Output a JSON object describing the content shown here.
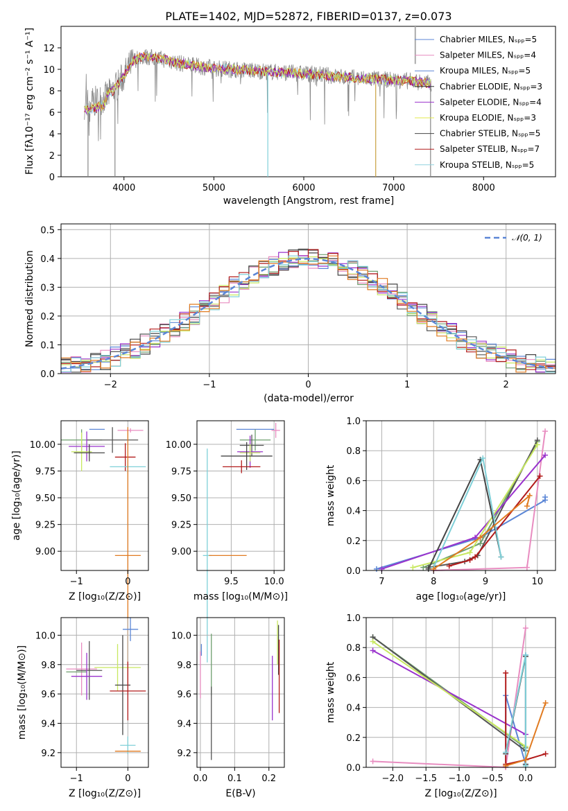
{
  "colors": [
    "#5b86d6",
    "#e88cc0",
    "#7fb87f",
    "#4f6f4f",
    "#8d36c2",
    "#e3e84a",
    "#333333",
    "#b22222",
    "#8fd2df"
  ],
  "model_colors": [
    "#5b86d6",
    "#e88cc0",
    "#6e9e6e",
    "#555555",
    "#9932cc",
    "#c8e860",
    "#444444",
    "#b21a1a",
    "#7fd0d8",
    "#e07a20"
  ],
  "chart_data": [
    {
      "id": "spectrum",
      "type": "line",
      "title": "PLATE=1402, MJD=52872, FIBERID=0137, z=0.073",
      "xlabel": "wavelength [Angstrom, rest frame]",
      "ylabel": "Flux [fλ10⁻¹⁷ erg cm⁻² s⁻¹ A⁻¹]",
      "xlim": [
        3300,
        8800
      ],
      "ylim": [
        0,
        14
      ],
      "xticks": [
        "4000",
        "5000",
        "6000",
        "7000",
        "8000"
      ],
      "yticks": [
        "0",
        "2",
        "4",
        "6",
        "8",
        "10",
        "12"
      ],
      "legend_position": "upper-right",
      "legend": [
        "Chabrier MILES, Nₛₚₚ=5",
        "Salpeter MILES, Nₛₚₚ=4",
        "Kroupa MILES, Nₛₚₚ=5",
        "Chabrier ELODIE, Nₛₚₚ=3",
        "Salpeter ELODIE, Nₛₚₚ=4",
        "Kroupa ELODIE, Nₛₚₚ=3",
        "Chabrier STELIB, Nₛₚₚ=5",
        "Salpeter STELIB, Nₛₚₚ=7",
        "Kroupa STELIB, Nₛₚₚ=5"
      ],
      "envelope": [
        [
          3560,
          6.8
        ],
        [
          3700,
          7.0
        ],
        [
          3800,
          7.4
        ],
        [
          3900,
          8.2
        ],
        [
          4000,
          9.4
        ],
        [
          4100,
          10.8
        ],
        [
          4200,
          11.2
        ],
        [
          4400,
          11.0
        ],
        [
          4600,
          10.6
        ],
        [
          4800,
          10.3
        ],
        [
          5000,
          10.1
        ],
        [
          5200,
          10.0
        ],
        [
          5400,
          9.9
        ],
        [
          5600,
          9.8
        ],
        [
          5800,
          9.7
        ],
        [
          6000,
          9.6
        ],
        [
          6200,
          9.5
        ],
        [
          6400,
          9.3
        ],
        [
          6600,
          9.2
        ],
        [
          6800,
          9.1
        ],
        [
          7000,
          9.0
        ],
        [
          7200,
          8.9
        ],
        [
          7400,
          8.7
        ]
      ]
    },
    {
      "id": "residuals",
      "type": "line",
      "xlabel": "(data-model)/error",
      "ylabel": "Normed distribution",
      "xlim": [
        -2.5,
        2.5
      ],
      "ylim": [
        0,
        0.52
      ],
      "xticks": [
        "−2",
        "−1",
        "0",
        "1",
        "2"
      ],
      "yticks": [
        "0.0",
        "0.1",
        "0.2",
        "0.3",
        "0.4",
        "0.5"
      ],
      "legend": [
        "𝒩(0, 1)"
      ],
      "legend_position": "upper-right",
      "curve": "gaussian(0,1)"
    },
    {
      "id": "age_vs_z",
      "type": "scatter",
      "xlabel": "Z [log₁₀(Z/Z⊙)]",
      "ylabel": "age  [log₁₀(age/yr)]",
      "xlim": [
        -1.3,
        0.4
      ],
      "ylim": [
        8.82,
        10.22
      ],
      "xticks": [
        "−1",
        "0"
      ],
      "yticks": [
        "9.00",
        "9.25",
        "9.50",
        "9.75",
        "10.00"
      ],
      "points": [
        {
          "x": -0.6,
          "y": 10.14,
          "xerr": 0.15,
          "yerr": 0.0
        },
        {
          "x": 0.05,
          "y": 10.13,
          "xerr": 0.25,
          "yerr": 0.02
        },
        {
          "x": -0.9,
          "y": 10.04,
          "xerr": 0.4,
          "yerr": 0.1
        },
        {
          "x": -0.3,
          "y": 10.04,
          "xerr": 0.5,
          "yerr": 0.12
        },
        {
          "x": -0.8,
          "y": 9.98,
          "xerr": 0.35,
          "yerr": 0.14
        },
        {
          "x": -0.9,
          "y": 9.93,
          "xerr": 0.2,
          "yerr": 0.18
        },
        {
          "x": -0.75,
          "y": 9.92,
          "xerr": 0.3,
          "yerr": 0.08
        },
        {
          "x": -0.05,
          "y": 9.88,
          "xerr": 0.2,
          "yerr": 0.13
        },
        {
          "x": 0.0,
          "y": 9.79,
          "xerr": 0.35,
          "yerr": 0.06
        },
        {
          "x": 0.0,
          "y": 8.96,
          "xerr": 0.25,
          "yerr": 1.2
        }
      ]
    },
    {
      "id": "age_vs_mass",
      "type": "scatter",
      "xlabel": "mass [log₁₀(M/M⊙)]",
      "ylabel": "",
      "xlim": [
        9.1,
        10.12
      ],
      "ylim": [
        8.82,
        10.22
      ],
      "xticks": [
        "9.5",
        "10.0"
      ],
      "yticks": [
        "9.00",
        "9.25",
        "9.50",
        "9.75",
        "10.00"
      ],
      "points": [
        {
          "x": 9.78,
          "y": 10.14,
          "xerr": 0.22,
          "yerr": 0.0
        },
        {
          "x": 10.02,
          "y": 10.13,
          "xerr": 0.05,
          "yerr": 0.07
        },
        {
          "x": 9.78,
          "y": 10.04,
          "xerr": 0.18,
          "yerr": 0.1
        },
        {
          "x": 9.74,
          "y": 9.99,
          "xerr": 0.14,
          "yerr": 0.1
        },
        {
          "x": 9.72,
          "y": 9.93,
          "xerr": 0.15,
          "yerr": 0.15
        },
        {
          "x": 9.72,
          "y": 9.92,
          "xerr": 0.12,
          "yerr": 0.08
        },
        {
          "x": 9.68,
          "y": 9.89,
          "xerr": 0.3,
          "yerr": 0.13
        },
        {
          "x": 9.62,
          "y": 9.79,
          "xerr": 0.22,
          "yerr": 0.06
        },
        {
          "x": 9.22,
          "y": 8.96,
          "xerr": 0.05,
          "yerr": 1.0
        },
        {
          "x": 9.46,
          "y": 8.96,
          "xerr": 0.22,
          "yerr": 0.0
        }
      ]
    },
    {
      "id": "weight_vs_age",
      "type": "line",
      "xlabel": "age  [log₁₀(age/yr)]",
      "ylabel": "mass weight",
      "xlim": [
        6.7,
        10.35
      ],
      "ylim": [
        0,
        1.0
      ],
      "xticks": [
        "7",
        "8",
        "9",
        "10"
      ],
      "yticks": [
        "0.0",
        "0.2",
        "0.4",
        "0.6",
        "0.8",
        "1.0"
      ],
      "series": [
        {
          "values": [
            [
              6.9,
              0.01
            ],
            [
              8.9,
              0.22
            ],
            [
              10.15,
              0.47
            ],
            [
              10.15,
              0.49
            ]
          ]
        },
        {
          "values": [
            [
              8.0,
              0.0
            ],
            [
              9.8,
              0.02
            ],
            [
              10.15,
              0.93
            ]
          ]
        },
        {
          "values": [
            [
              7.8,
              0.02
            ],
            [
              8.9,
              0.18
            ],
            [
              10.0,
              0.86
            ]
          ]
        },
        {
          "values": [
            [
              7.9,
              0.02
            ],
            [
              8.6,
              0.06
            ],
            [
              8.85,
              0.1
            ],
            [
              10.0,
              0.87
            ]
          ]
        },
        {
          "values": [
            [
              7.0,
              0.01
            ],
            [
              8.8,
              0.22
            ],
            [
              10.15,
              0.77
            ]
          ]
        },
        {
          "values": [
            [
              7.6,
              0.02
            ],
            [
              8.7,
              0.12
            ],
            [
              10.0,
              0.84
            ]
          ]
        },
        {
          "values": [
            [
              7.9,
              0.01
            ],
            [
              8.9,
              0.74
            ],
            [
              9.3,
              0.09
            ]
          ]
        },
        {
          "values": [
            [
              8.3,
              0.03
            ],
            [
              8.7,
              0.07
            ],
            [
              8.8,
              0.09
            ],
            [
              10.05,
              0.63
            ]
          ]
        },
        {
          "values": [
            [
              8.0,
              0.02
            ],
            [
              8.95,
              0.75
            ],
            [
              9.3,
              0.09
            ]
          ]
        },
        {
          "values": [
            [
              8.0,
              0.01
            ],
            [
              8.9,
              0.22
            ],
            [
              9.85,
              0.5
            ],
            [
              9.8,
              0.43
            ]
          ]
        }
      ]
    },
    {
      "id": "mass_vs_z",
      "type": "scatter",
      "xlabel": "Z [log₁₀(Z/Z⊙)]",
      "ylabel": "mass [log₁₀(M/M⊙)]",
      "xlim": [
        -1.3,
        0.4
      ],
      "ylim": [
        9.1,
        10.12
      ],
      "xticks": [
        "−1",
        "0"
      ],
      "yticks": [
        "9.2",
        "9.4",
        "9.6",
        "9.8",
        "10.0"
      ],
      "points": [
        {
          "x": 0.05,
          "y": 10.04,
          "xerr": 0.15,
          "yerr": 0.08
        },
        {
          "x": -0.9,
          "y": 9.77,
          "xerr": 0.3,
          "yerr": 0.18
        },
        {
          "x": -1.0,
          "y": 9.75,
          "xerr": 0.2,
          "yerr": 0.0
        },
        {
          "x": -0.75,
          "y": 9.76,
          "xerr": 0.25,
          "yerr": 0.2
        },
        {
          "x": -0.8,
          "y": 9.72,
          "xerr": 0.3,
          "yerr": 0.16
        },
        {
          "x": -0.2,
          "y": 9.78,
          "xerr": 0.45,
          "yerr": 0.16
        },
        {
          "x": -0.1,
          "y": 9.66,
          "xerr": 0.15,
          "yerr": 0.34
        },
        {
          "x": 0.0,
          "y": 9.62,
          "xerr": 0.35,
          "yerr": 0.2
        },
        {
          "x": 0.0,
          "y": 9.25,
          "xerr": 0.15,
          "yerr": 0.06
        },
        {
          "x": 0.0,
          "y": 9.21,
          "xerr": 0.25,
          "yerr": 0.0
        }
      ]
    },
    {
      "id": "mass_vs_ebv",
      "type": "scatter",
      "xlabel": "E(B-V)",
      "ylabel": "",
      "xlim": [
        -0.01,
        0.245
      ],
      "ylim": [
        9.1,
        10.12
      ],
      "xticks": [
        "0.0",
        "0.1",
        "0.2"
      ],
      "yticks": [
        "9.2",
        "9.4",
        "9.6",
        "9.8",
        "10.0"
      ],
      "points": [
        {
          "x": 0.003,
          "y": 9.9,
          "xerr": 0,
          "yerr": 0.04
        },
        {
          "x": 0.0,
          "y": 9.73,
          "xerr": 0,
          "yerr": 0.16
        },
        {
          "x": 0.032,
          "y": 9.8,
          "xerr": 0,
          "yerr": 0.21
        },
        {
          "x": 0.032,
          "y": 9.4,
          "xerr": 0,
          "yerr": 0.25
        },
        {
          "x": 0.21,
          "y": 9.64,
          "xerr": 0,
          "yerr": 0.22
        },
        {
          "x": 0.225,
          "y": 9.95,
          "xerr": 0,
          "yerr": 0.15
        },
        {
          "x": 0.228,
          "y": 9.9,
          "xerr": 0,
          "yerr": 0.17
        },
        {
          "x": 0.23,
          "y": 9.72,
          "xerr": 0,
          "yerr": 0.25
        }
      ]
    },
    {
      "id": "weight_vs_z",
      "type": "line",
      "xlabel": "Z [log₁₀(Z/Z⊙)]",
      "ylabel": "mass weight",
      "xlim": [
        -2.4,
        0.45
      ],
      "ylim": [
        0,
        1.0
      ],
      "xticks": [
        "−2.0",
        "−1.5",
        "−1.0",
        "−0.5",
        "0.0"
      ],
      "yticks": [
        "0.0",
        "0.2",
        "0.4",
        "0.6",
        "0.8",
        "1.0"
      ],
      "series": [
        {
          "values": [
            [
              -0.3,
              0.0
            ],
            [
              -0.3,
              0.48
            ],
            [
              0.0,
              0.02
            ],
            [
              0.0,
              0.75
            ]
          ]
        },
        {
          "values": [
            [
              -2.3,
              0.04
            ],
            [
              -0.3,
              0.0
            ],
            [
              0.0,
              0.93
            ]
          ]
        },
        {
          "values": [
            [
              -2.3,
              0.87
            ],
            [
              0.0,
              0.13
            ]
          ]
        },
        {
          "values": [
            [
              -2.3,
              0.87
            ],
            [
              0.0,
              0.11
            ]
          ]
        },
        {
          "values": [
            [
              -2.3,
              0.78
            ],
            [
              0.0,
              0.22
            ]
          ]
        },
        {
          "values": [
            [
              -2.3,
              0.84
            ],
            [
              0.0,
              0.14
            ]
          ]
        },
        {
          "values": [
            [
              -0.3,
              0.09
            ],
            [
              0.0,
              0.74
            ],
            [
              0.0,
              0.02
            ]
          ]
        },
        {
          "values": [
            [
              -0.3,
              0.63
            ],
            [
              -0.3,
              0.02
            ],
            [
              0.0,
              0.05
            ],
            [
              0.3,
              0.09
            ]
          ]
        },
        {
          "values": [
            [
              -0.3,
              0.1
            ],
            [
              0.0,
              0.75
            ],
            [
              0.0,
              0.01
            ]
          ]
        },
        {
          "values": [
            [
              -0.3,
              0.01
            ],
            [
              0.0,
              0.05
            ],
            [
              0.3,
              0.43
            ]
          ]
        }
      ]
    }
  ]
}
